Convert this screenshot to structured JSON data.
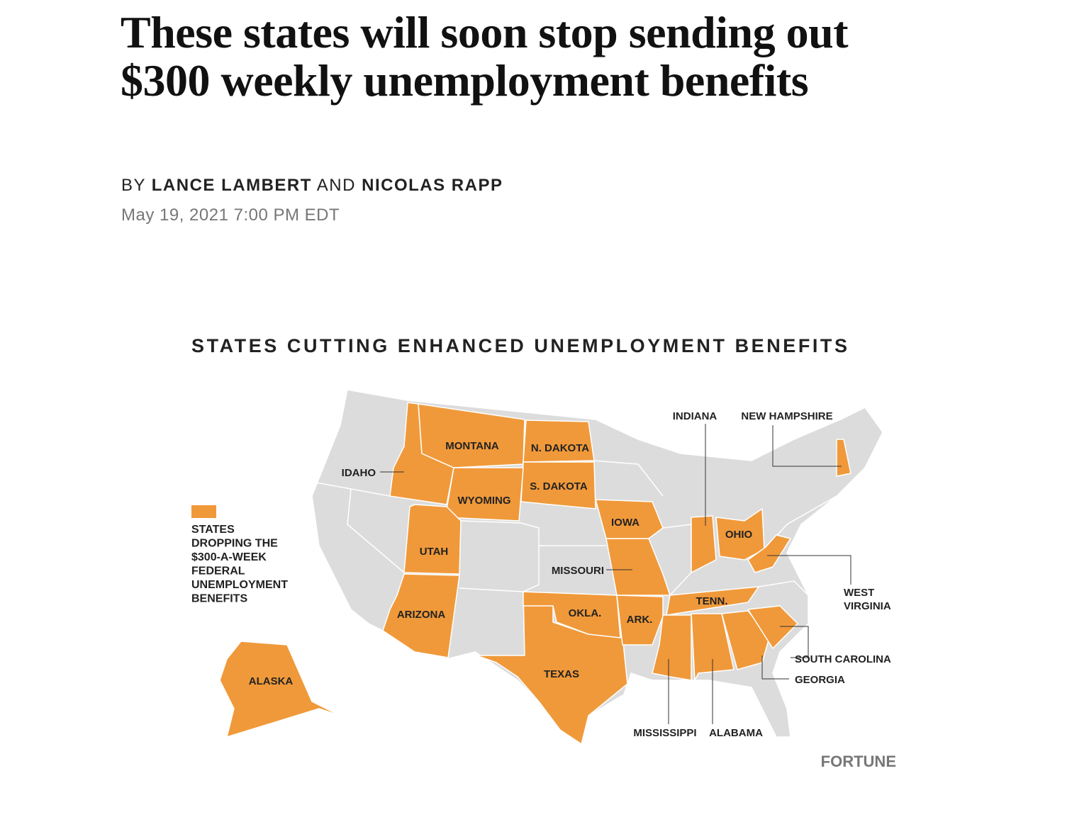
{
  "article": {
    "title": "These states will soon stop sending out $300 weekly unemployment benefits",
    "byline": {
      "prefix": "BY",
      "authors": [
        "LANCE LAMBERT",
        "NICOLAS RAPP"
      ],
      "conjunction": "AND"
    },
    "date": "May 19, 2021 7:00 PM EDT"
  },
  "map": {
    "title": "STATES CUTTING ENHANCED UNEMPLOYMENT BENEFITS",
    "legend": {
      "color": "#f0993a",
      "lines": [
        "STATES",
        "DROPPING THE",
        "$300-A-WEEK",
        "FEDERAL",
        "UNEMPLOYMENT",
        "BENEFITS"
      ]
    },
    "states": [
      "IDAHO",
      "MONTANA",
      "N. DAKOTA",
      "S. DAKOTA",
      "WYOMING",
      "UTAH",
      "ARIZONA",
      "TEXAS",
      "OKLA.",
      "ARK.",
      "MISSOURI",
      "IOWA",
      "INDIANA",
      "OHIO",
      "NEW HAMPSHIRE",
      "TENN.",
      "SOUTH CAROLINA",
      "GEORGIA",
      "MISSISSIPPI",
      "ALABAMA",
      "ALASKA"
    ],
    "west_virginia": [
      "WEST",
      "VIRGINIA"
    ],
    "credit": "FORTUNE"
  }
}
